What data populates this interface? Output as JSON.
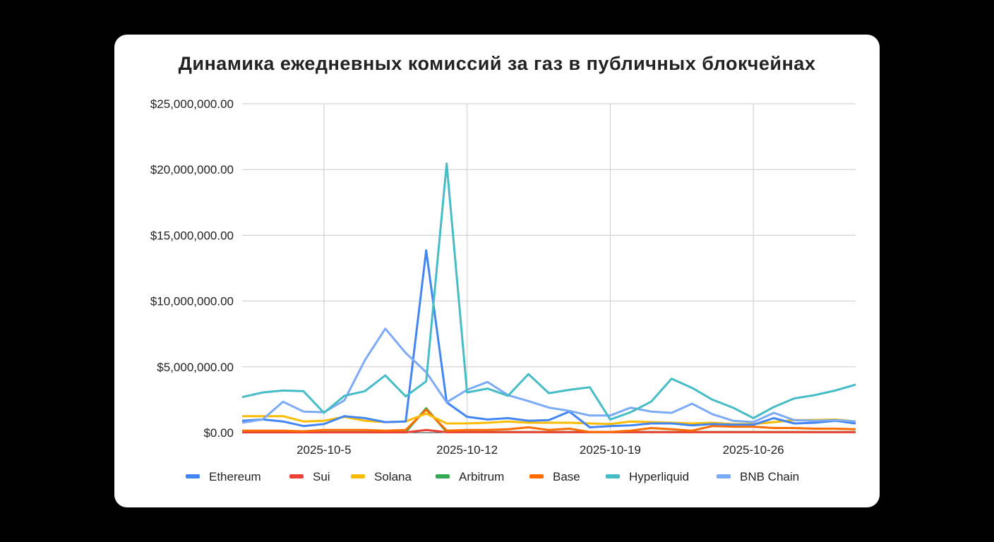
{
  "chart_data": {
    "type": "line",
    "title": "Динамика ежедневных комиссий за газ в публичных блокчейнах",
    "xlabel": "",
    "ylabel": "",
    "ylim": [
      0,
      25000000
    ],
    "yticks": [
      "$0.00",
      "$5,000,000.00",
      "$10,000,000.00",
      "$15,000,000.00",
      "$20,000,000.00",
      "$25,000,000.00"
    ],
    "xticks": [
      "2025-10-5",
      "2025-10-12",
      "2025-10-19",
      "2025-10-26"
    ],
    "grid": true,
    "legend_position": "bottom",
    "x": [
      "2025-10-1",
      "2025-10-2",
      "2025-10-3",
      "2025-10-4",
      "2025-10-5",
      "2025-10-6",
      "2025-10-7",
      "2025-10-8",
      "2025-10-9",
      "2025-10-10",
      "2025-10-11",
      "2025-10-12",
      "2025-10-13",
      "2025-10-14",
      "2025-10-15",
      "2025-10-16",
      "2025-10-17",
      "2025-10-18",
      "2025-10-19",
      "2025-10-20",
      "2025-10-21",
      "2025-10-22",
      "2025-10-23",
      "2025-10-24",
      "2025-10-25",
      "2025-10-26",
      "2025-10-27",
      "2025-10-28",
      "2025-10-29",
      "2025-10-30",
      "2025-10-31"
    ],
    "series": [
      {
        "name": "Ethereum",
        "color": "#4285F4",
        "values": [
          900000,
          1000000,
          850000,
          500000,
          650000,
          1250000,
          1100000,
          800000,
          850000,
          13850000,
          2300000,
          1200000,
          1000000,
          1100000,
          900000,
          950000,
          1600000,
          400000,
          500000,
          550000,
          700000,
          700000,
          550000,
          650000,
          600000,
          600000,
          1100000,
          700000,
          750000,
          900000,
          700000
        ]
      },
      {
        "name": "Sui",
        "color": "#EA4335",
        "values": [
          20000,
          20000,
          20000,
          20000,
          20000,
          20000,
          20000,
          20000,
          20000,
          200000,
          30000,
          30000,
          30000,
          30000,
          30000,
          30000,
          30000,
          30000,
          30000,
          30000,
          30000,
          30000,
          30000,
          30000,
          30000,
          30000,
          30000,
          30000,
          30000,
          30000,
          30000
        ]
      },
      {
        "name": "Solana",
        "color": "#FBBC04",
        "values": [
          1250000,
          1250000,
          1250000,
          850000,
          900000,
          1200000,
          900000,
          800000,
          850000,
          1450000,
          700000,
          700000,
          750000,
          850000,
          750000,
          750000,
          750000,
          700000,
          650000,
          850000,
          800000,
          750000,
          700000,
          750000,
          650000,
          650000,
          800000,
          950000,
          950000,
          1000000,
          850000
        ]
      },
      {
        "name": "Arbitrum",
        "color": "#34A853",
        "values": [
          30000,
          30000,
          30000,
          30000,
          40000,
          40000,
          40000,
          40000,
          40000,
          1850000,
          50000,
          50000,
          50000,
          50000,
          50000,
          50000,
          50000,
          50000,
          50000,
          50000,
          50000,
          50000,
          50000,
          50000,
          50000,
          50000,
          50000,
          50000,
          50000,
          50000,
          50000
        ]
      },
      {
        "name": "Base",
        "color": "#FF6D01",
        "values": [
          150000,
          150000,
          150000,
          100000,
          200000,
          200000,
          200000,
          150000,
          200000,
          1750000,
          150000,
          200000,
          200000,
          250000,
          400000,
          200000,
          300000,
          50000,
          50000,
          150000,
          350000,
          250000,
          150000,
          500000,
          450000,
          450000,
          350000,
          350000,
          300000,
          300000,
          250000
        ]
      },
      {
        "name": "Hyperliquid",
        "color": "#46BDC6",
        "values": [
          2700000,
          3050000,
          3200000,
          3150000,
          1500000,
          2800000,
          3150000,
          4350000,
          2750000,
          3900000,
          20450000,
          3050000,
          3350000,
          2800000,
          4450000,
          3000000,
          3250000,
          3450000,
          1000000,
          1550000,
          2350000,
          4100000,
          3400000,
          2500000,
          1900000,
          1100000,
          1950000,
          2600000,
          2850000,
          3200000,
          3650000
        ]
      },
      {
        "name": "BNB Chain",
        "color": "#7BAAF7",
        "values": [
          750000,
          1000000,
          2350000,
          1600000,
          1550000,
          2450000,
          5500000,
          7900000,
          6050000,
          4600000,
          2300000,
          3250000,
          3850000,
          2850000,
          2400000,
          1900000,
          1650000,
          1300000,
          1300000,
          1900000,
          1600000,
          1500000,
          2200000,
          1400000,
          900000,
          800000,
          1500000,
          950000,
          900000,
          950000,
          850000
        ]
      }
    ]
  }
}
